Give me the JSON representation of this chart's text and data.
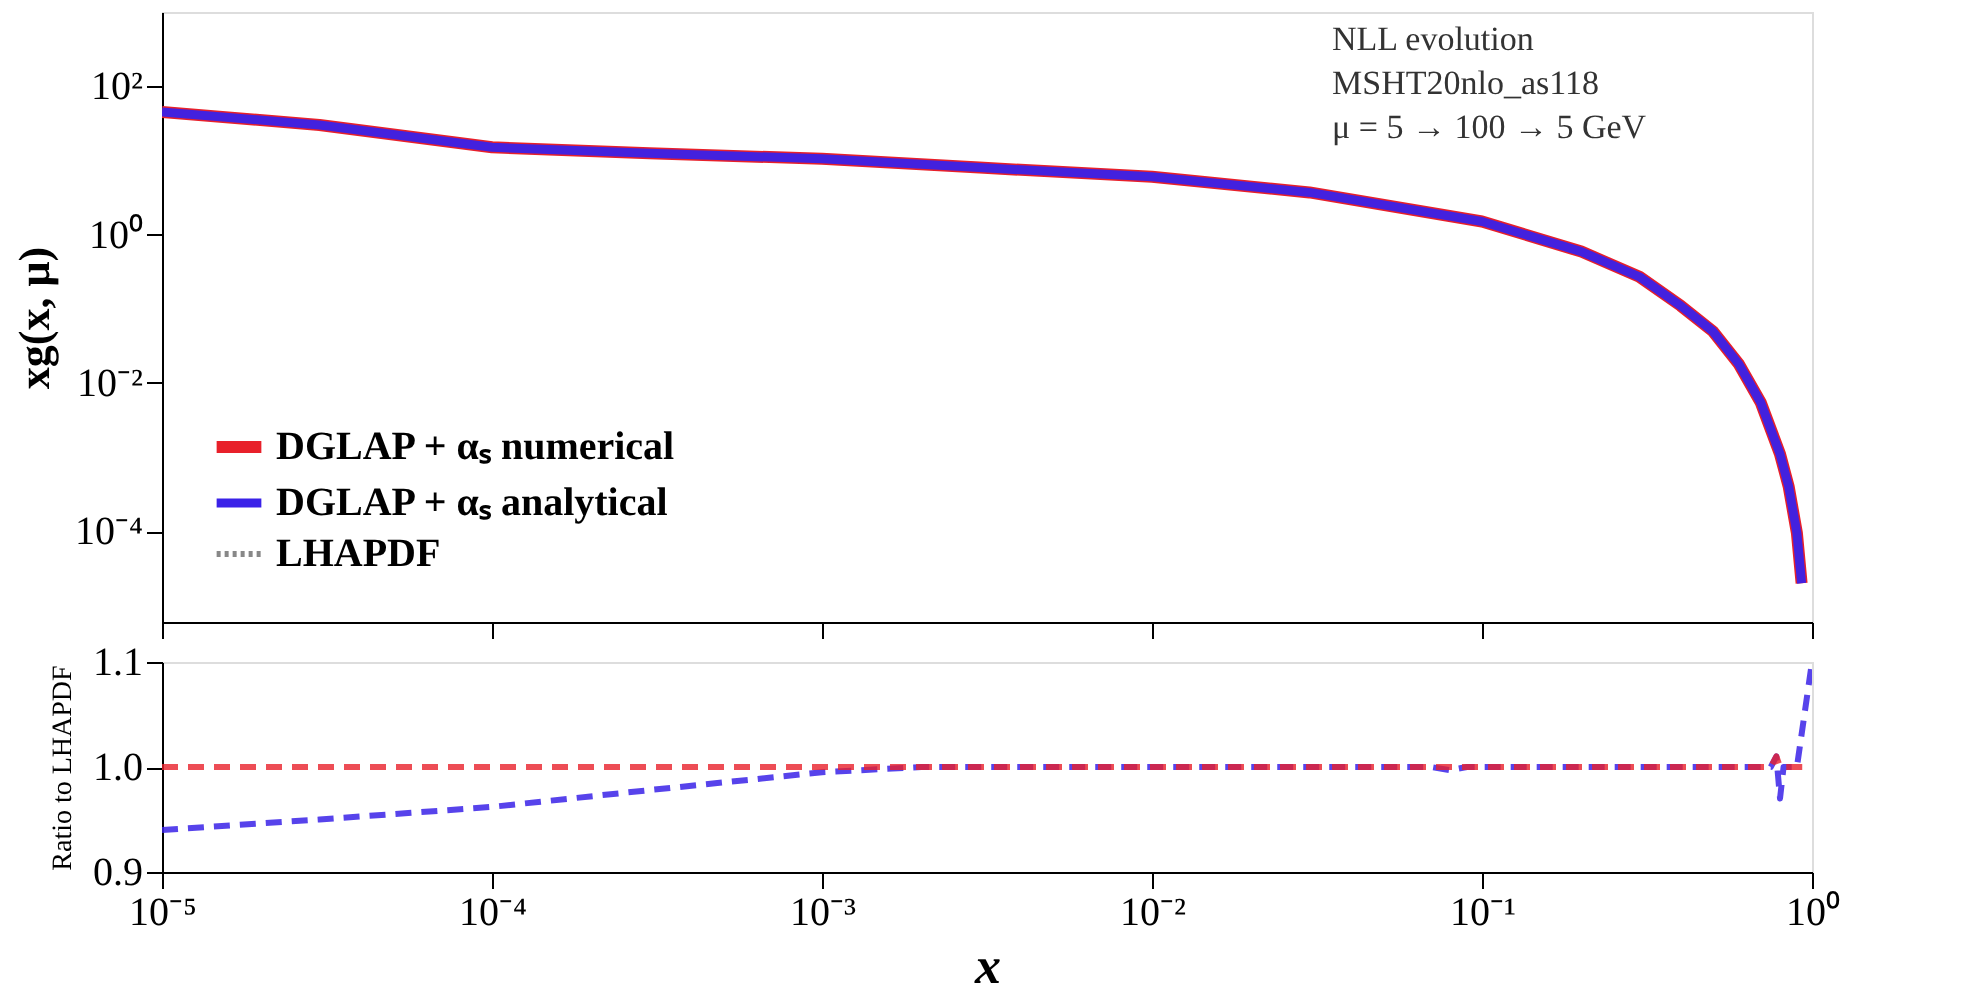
{
  "chart_data": [
    {
      "type": "line",
      "ylabel": "xg(x, μ)",
      "log": "xy",
      "legend": "bottom left",
      "tick_labels": "y",
      "annotations": [
        "NLL evolution",
        "MSHT20nlo_as118",
        "μ = 5 → 100 → 5 GeV"
      ],
      "xlim": [
        1e-05,
        1
      ],
      "xticks": [
        {
          "value": 1e-05,
          "label": null
        },
        {
          "value": 0.0001,
          "label": null
        },
        {
          "value": 0.001,
          "label": null
        },
        {
          "value": 0.01,
          "label": null
        },
        {
          "value": 0.1,
          "label": null
        },
        {
          "value": 1,
          "label": null
        }
      ],
      "ylim": [
        6e-06,
        1000
      ],
      "yticks": [
        {
          "value": 0.0001,
          "label": "10⁻⁴"
        },
        {
          "value": 0.01,
          "label": "10⁻²"
        },
        {
          "value": 1,
          "label": "10⁰"
        },
        {
          "value": 100,
          "label": "10²"
        }
      ],
      "x": [
        1e-05,
        3e-05,
        0.0001,
        0.0003,
        0.001,
        0.003,
        0.01,
        0.03,
        0.1,
        0.2,
        0.3,
        0.4,
        0.5,
        0.6,
        0.7,
        0.8,
        0.85,
        0.9,
        0.93
      ],
      "series": [
        {
          "name": "DGLAP + αₛ numerical",
          "color": "#e8202a",
          "line_style": "solid",
          "values": [
            45,
            30,
            15,
            12.5,
            10.5,
            8,
            6,
            3.7,
            1.5,
            0.59,
            0.27,
            0.11,
            0.05,
            0.018,
            0.0054,
            0.0011,
            0.0004,
            9.5e-05,
            2e-05
          ]
        },
        {
          "name": "DGLAP + αₛ analytical",
          "color": "#3a22e8",
          "line_style": "solid",
          "values": [
            45,
            30,
            15,
            12.5,
            10.5,
            8,
            6,
            3.7,
            1.5,
            0.59,
            0.27,
            0.11,
            0.05,
            0.018,
            0.0054,
            0.0011,
            0.0004,
            9.5e-05,
            2e-05
          ]
        },
        {
          "name": "LHAPDF",
          "color": "#888888",
          "line_style": "dotted",
          "values": [
            null,
            null,
            null,
            null,
            null,
            null,
            null,
            null,
            null,
            null,
            null,
            null,
            null,
            null,
            null,
            null,
            null,
            null,
            null
          ]
        }
      ]
    },
    {
      "type": "line",
      "ylabel": "Ratio to LHAPDF",
      "xlabel": "x",
      "log": "x",
      "xlim": [
        1e-05,
        1
      ],
      "xticks": [
        {
          "value": 1e-05,
          "label": "10⁻⁵"
        },
        {
          "value": 0.0001,
          "label": "10⁻⁴"
        },
        {
          "value": 0.001,
          "label": "10⁻³"
        },
        {
          "value": 0.01,
          "label": "10⁻²"
        },
        {
          "value": 0.1,
          "label": "10⁻¹"
        },
        {
          "value": 1,
          "label": "10⁰"
        }
      ],
      "ylim": [
        0.9,
        1.1
      ],
      "yticks": [
        0.9,
        {
          "value": 1.0,
          "label": "1.0"
        },
        1.1
      ],
      "x": [
        1e-05,
        3e-05,
        0.0001,
        0.0003,
        0.001,
        0.002,
        0.01,
        0.07,
        0.08,
        0.09,
        0.1,
        0.3,
        0.75,
        0.78,
        0.8,
        0.82,
        0.9,
        1.0
      ],
      "series": [
        {
          "color": "#3a22e8",
          "line_style": "dashed",
          "values": [
            0.94,
            0.95,
            0.962,
            0.978,
            0.995,
            1.0,
            1.0,
            1.0,
            0.997,
            1.0,
            1.0,
            1.0,
            1.0,
            1.01,
            0.97,
            1.0,
            1.0,
            1.1
          ]
        },
        {
          "color": "#e8202a",
          "line_style": "dashed",
          "values": [
            1.0,
            1.0,
            1.0,
            1.0,
            1.0,
            1.0,
            1.0,
            1.0,
            1.0,
            1.0,
            1.0,
            1.0,
            1.0,
            1.01,
            1.0,
            1.0,
            1.0,
            1.0
          ]
        }
      ]
    }
  ]
}
